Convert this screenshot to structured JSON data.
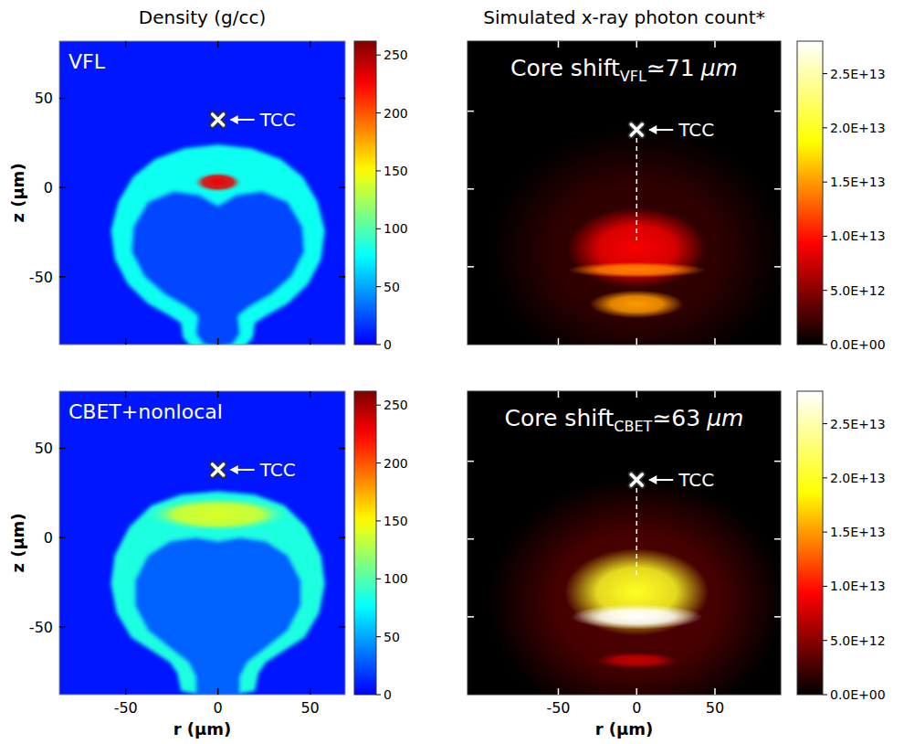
{
  "chart_data": [
    {
      "type": "image",
      "title": "Density (g/cc)",
      "label": "VFL",
      "ylabel": "z (μm)",
      "color": "jet",
      "xlim": [
        -86,
        69
      ],
      "ylim": [
        -88,
        82
      ],
      "xticks": [
        -50,
        0,
        50
      ],
      "yticks": [
        -50,
        0,
        50
      ],
      "tick_labels": "y",
      "background": 8,
      "shell": {
        "density": 80,
        "core_density": 22,
        "outer": [
          [
            0,
            24
          ],
          [
            18,
            22
          ],
          [
            34,
            16
          ],
          [
            46,
            6
          ],
          [
            54,
            -8
          ],
          [
            58,
            -24
          ],
          [
            56,
            -40
          ],
          [
            49,
            -54
          ],
          [
            38,
            -65
          ],
          [
            26,
            -72
          ],
          [
            20,
            -76
          ],
          [
            19,
            -84
          ],
          [
            14,
            -90
          ],
          [
            0,
            -92
          ],
          [
            -14,
            -90
          ],
          [
            -19,
            -84
          ],
          [
            -20,
            -76
          ],
          [
            -26,
            -72
          ],
          [
            -38,
            -65
          ],
          [
            -49,
            -54
          ],
          [
            -56,
            -40
          ],
          [
            -58,
            -24
          ],
          [
            -54,
            -8
          ],
          [
            -46,
            6
          ],
          [
            -34,
            16
          ],
          [
            -18,
            22
          ]
        ],
        "inner": [
          [
            0,
            -10
          ],
          [
            10,
            -4
          ],
          [
            24,
            -2
          ],
          [
            38,
            -8
          ],
          [
            46,
            -22
          ],
          [
            47,
            -36
          ],
          [
            40,
            -50
          ],
          [
            29,
            -60
          ],
          [
            17,
            -67
          ],
          [
            11,
            -72
          ],
          [
            12,
            -82
          ],
          [
            8,
            -88
          ],
          [
            0,
            -90
          ],
          [
            -8,
            -88
          ],
          [
            -12,
            -82
          ],
          [
            -11,
            -72
          ],
          [
            -17,
            -67
          ],
          [
            -29,
            -60
          ],
          [
            -40,
            -50
          ],
          [
            -47,
            -36
          ],
          [
            -46,
            -22
          ],
          [
            -38,
            -8
          ],
          [
            -24,
            -2
          ],
          [
            -10,
            -4
          ]
        ]
      },
      "hotspot": {
        "r": 0,
        "z": 3,
        "dr": 14,
        "dz": 6,
        "density": 230
      },
      "colorbar": {
        "lim": [
          0,
          262
        ],
        "ticks": [
          0,
          50,
          100,
          150,
          200,
          250
        ]
      },
      "tcc": {
        "r": 0,
        "z": 38,
        "label": "TCC"
      }
    },
    {
      "type": "image",
      "label": "CBET+nonlocal",
      "xlabel": "r (μm)",
      "ylabel": "z (μm)",
      "color": "jet",
      "xlim": [
        -86,
        69
      ],
      "ylim": [
        -88,
        82
      ],
      "xticks": [
        -50,
        0,
        50
      ],
      "yticks": [
        -50,
        0,
        50
      ],
      "tick_labels": true,
      "background": 8,
      "shell": {
        "density": 85,
        "core_density": 30,
        "outer": [
          [
            0,
            26
          ],
          [
            20,
            24
          ],
          [
            36,
            18
          ],
          [
            48,
            6
          ],
          [
            56,
            -10
          ],
          [
            58,
            -26
          ],
          [
            55,
            -42
          ],
          [
            47,
            -56
          ],
          [
            35,
            -64
          ],
          [
            26,
            -70
          ],
          [
            22,
            -76
          ],
          [
            20,
            -86
          ],
          [
            0,
            -90
          ],
          [
            -20,
            -86
          ],
          [
            -22,
            -76
          ],
          [
            -26,
            -70
          ],
          [
            -35,
            -64
          ],
          [
            -47,
            -56
          ],
          [
            -55,
            -42
          ],
          [
            -58,
            -26
          ],
          [
            -56,
            -10
          ],
          [
            -48,
            6
          ],
          [
            -36,
            18
          ],
          [
            -20,
            24
          ]
        ],
        "inner": [
          [
            0,
            -2
          ],
          [
            12,
            0
          ],
          [
            26,
            -2
          ],
          [
            38,
            -10
          ],
          [
            45,
            -24
          ],
          [
            45,
            -38
          ],
          [
            38,
            -52
          ],
          [
            26,
            -62
          ],
          [
            16,
            -70
          ],
          [
            12,
            -78
          ],
          [
            12,
            -88
          ],
          [
            0,
            -90
          ],
          [
            -12,
            -88
          ],
          [
            -12,
            -78
          ],
          [
            -16,
            -70
          ],
          [
            -26,
            -62
          ],
          [
            -38,
            -52
          ],
          [
            -45,
            -38
          ],
          [
            -45,
            -24
          ],
          [
            -38,
            -10
          ],
          [
            -26,
            -2
          ],
          [
            -12,
            0
          ]
        ]
      },
      "hotspot": {
        "r": 0,
        "z": 13,
        "dr": 40,
        "dz": 10,
        "density": 140
      },
      "colorbar": {
        "lim": [
          0,
          262
        ],
        "ticks": [
          0,
          50,
          100,
          150,
          200,
          250
        ]
      },
      "tcc": {
        "r": 0,
        "z": 38,
        "label": "TCC"
      }
    },
    {
      "type": "image",
      "title": "Simulated x-ray photon count*",
      "color": "hot",
      "xlim": [
        -108,
        92
      ],
      "ylim": [
        -100,
        95
      ],
      "xticks": [
        -50,
        0,
        50
      ],
      "yticks": [
        -50,
        0,
        50
      ],
      "tick_labels": false,
      "background": 0,
      "emission": [
        {
          "r": 0,
          "z": -40,
          "dr": 95,
          "dz": 80,
          "intensity": 2000000000000
        },
        {
          "r": 0,
          "z": -38,
          "dr": 44,
          "dz": 26,
          "intensity": 9000000000000
        },
        {
          "r": 0,
          "z": -52,
          "dr": 44,
          "dz": 5,
          "intensity": 14000000000000
        },
        {
          "r": 0,
          "z": -74,
          "dr": 30,
          "dz": 9,
          "intensity": 15000000000000
        }
      ],
      "colorbar": {
        "lim": [
          0,
          28000000000000
        ],
        "ticks": [
          {
            "value": 0,
            "label": "0.0E+00"
          },
          {
            "value": 5000000000000,
            "label": "5.0E+12"
          },
          {
            "value": 10000000000000,
            "label": "1.0E+13"
          },
          {
            "value": 15000000000000,
            "label": "1.5E+13"
          },
          {
            "value": 20000000000000,
            "label": "2.0E+13"
          },
          {
            "value": 25000000000000,
            "label": "2.5E+13"
          }
        ]
      },
      "tcc": {
        "r": 0,
        "z": 38,
        "label": "TCC"
      },
      "annotation": {
        "text": "Core shift",
        "subscript": "VFL",
        "relation": "≃",
        "value": 71,
        "unit": "μm"
      }
    },
    {
      "type": "image",
      "xlabel": "r (μm)",
      "color": "hot",
      "xlim": [
        -108,
        92
      ],
      "ylim": [
        -100,
        95
      ],
      "xticks": [
        -50,
        0,
        50
      ],
      "yticks": [
        -50,
        0,
        50
      ],
      "tick_labels": "x",
      "background": 0,
      "emission": [
        {
          "r": 0,
          "z": -40,
          "dr": 95,
          "dz": 80,
          "intensity": 3000000000000
        },
        {
          "r": 0,
          "z": -34,
          "dr": 46,
          "dz": 28,
          "intensity": 20000000000000
        },
        {
          "r": 0,
          "z": -50,
          "dr": 42,
          "dz": 8,
          "intensity": 28000000000000
        },
        {
          "r": 0,
          "z": -78,
          "dr": 26,
          "dz": 5,
          "intensity": 7000000000000
        }
      ],
      "colorbar": {
        "lim": [
          0,
          28000000000000
        ],
        "ticks": [
          {
            "value": 0,
            "label": "0.0E+00"
          },
          {
            "value": 5000000000000,
            "label": "5.0E+12"
          },
          {
            "value": 10000000000000,
            "label": "1.0E+13"
          },
          {
            "value": 15000000000000,
            "label": "1.5E+13"
          },
          {
            "value": 20000000000000,
            "label": "2.0E+13"
          },
          {
            "value": 25000000000000,
            "label": "2.5E+13"
          }
        ]
      },
      "tcc": {
        "r": 0,
        "z": 38,
        "label": "TCC"
      },
      "annotation": {
        "text": "Core shift",
        "subscript": "CBET",
        "relation": "≃",
        "value": 63,
        "unit": "μm"
      }
    }
  ]
}
